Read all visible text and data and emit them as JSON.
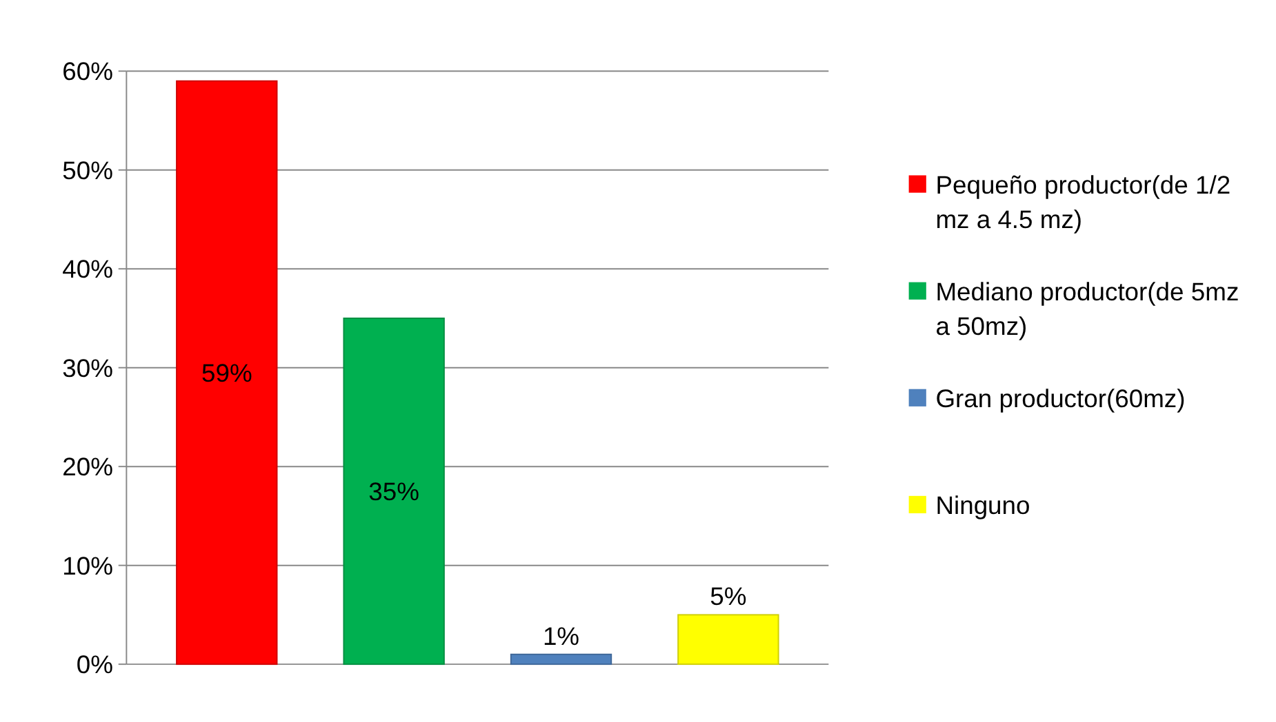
{
  "chart_data": {
    "type": "bar",
    "categories": [
      null,
      null,
      null,
      null
    ],
    "series": [
      {
        "name": "Pequeño productor(de 1/2 mz a 4.5 mz)",
        "color": "#ff0000",
        "values": [
          59,
          null,
          null,
          null
        ],
        "value_labels": [
          "59%",
          null,
          null,
          null
        ]
      },
      {
        "name": "Mediano productor(de 5mz a 50mz)",
        "color": "#00b050",
        "values": [
          null,
          35,
          null,
          null
        ],
        "value_labels": [
          null,
          "35%",
          null,
          null
        ]
      },
      {
        "name": "Gran productor(60mz)",
        "color": "#4f81bd",
        "values": [
          null,
          null,
          1,
          null
        ],
        "value_labels": [
          null,
          null,
          "1%",
          null
        ]
      },
      {
        "name": "Ninguno",
        "color": "#ffff00",
        "values": [
          null,
          null,
          null,
          5
        ],
        "value_labels": [
          null,
          null,
          null,
          "5%"
        ]
      }
    ],
    "ylim": [
      0,
      60
    ],
    "yticks": [
      {
        "value": 0,
        "label": "0%"
      },
      {
        "value": 10,
        "label": "10%"
      },
      {
        "value": 20,
        "label": "20%"
      },
      {
        "value": 30,
        "label": "30%"
      },
      {
        "value": 40,
        "label": "40%"
      },
      {
        "value": 50,
        "label": "50%"
      },
      {
        "value": 60,
        "label": "60%"
      }
    ],
    "grid": "y",
    "legend": "right"
  }
}
